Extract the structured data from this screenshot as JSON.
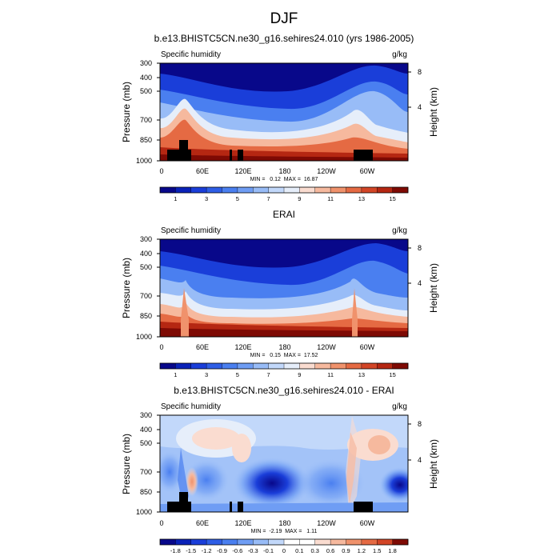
{
  "page_title": "DJF",
  "chart_data": [
    {
      "type": "heatmap",
      "title": "b.e13.BHISTC5CN.ne30_g16.sehires24.010 (yrs 1986-2005)",
      "variable_label": "Specific humidity",
      "units_label": "g/kg",
      "ylabel": "Pressure (mb)",
      "ylabel_right": "Height (km)",
      "y_ticks": [
        "300",
        "400",
        "500",
        "700",
        "850",
        "1000"
      ],
      "y_ticks_right": [
        "8",
        "4"
      ],
      "x_ticks": [
        "0",
        "60E",
        "120E",
        "180",
        "120W",
        "60W"
      ],
      "stats": "MIN =   0.12  MAX =  16.87",
      "colorbar_labels": [
        "1",
        "3",
        "5",
        "7",
        "9",
        "11",
        "13",
        "15"
      ],
      "colorbar_colors": [
        "#08088a",
        "#0a22b8",
        "#1a3ed9",
        "#2e5ee6",
        "#4a7ff0",
        "#6f9df4",
        "#98bcf7",
        "#c2d8fa",
        "#e6eefa",
        "#fadcd0",
        "#f6b99e",
        "#f0926c",
        "#e56a43",
        "#d24526",
        "#b52712",
        "#7e0a04"
      ],
      "mask": true
    },
    {
      "type": "heatmap",
      "title": "ERAI",
      "variable_label": "Specific humidity",
      "units_label": "g/kg",
      "ylabel": "Pressure (mb)",
      "ylabel_right": "Height (km)",
      "y_ticks": [
        "300",
        "400",
        "500",
        "700",
        "850",
        "1000"
      ],
      "y_ticks_right": [
        "8",
        "4"
      ],
      "x_ticks": [
        "0",
        "60E",
        "120E",
        "180",
        "120W",
        "60W"
      ],
      "stats": "MIN =   0.15  MAX =  17.52",
      "colorbar_labels": [
        "1",
        "3",
        "5",
        "7",
        "9",
        "11",
        "13",
        "15"
      ],
      "colorbar_colors": [
        "#08088a",
        "#0a22b8",
        "#1a3ed9",
        "#2e5ee6",
        "#4a7ff0",
        "#6f9df4",
        "#98bcf7",
        "#c2d8fa",
        "#e6eefa",
        "#fadcd0",
        "#f6b99e",
        "#f0926c",
        "#e56a43",
        "#d24526",
        "#b52712",
        "#7e0a04"
      ],
      "mask": false
    },
    {
      "type": "heatmap",
      "title": "b.e13.BHISTC5CN.ne30_g16.sehires24.010 - ERAI",
      "variable_label": "Specific humidity",
      "units_label": "g/kg",
      "ylabel": "Pressure (mb)",
      "ylabel_right": "Height (km)",
      "y_ticks": [
        "300",
        "400",
        "500",
        "700",
        "850",
        "1000"
      ],
      "y_ticks_right": [
        "8",
        "4"
      ],
      "x_ticks": [
        "0",
        "60E",
        "120E",
        "180",
        "120W",
        "60W"
      ],
      "stats": "MIN =  -2.19  MAX =   1.11",
      "colorbar_labels": [
        "-1.8",
        "-1.5",
        "-1.2",
        "-0.9",
        "-0.6",
        "-0.3",
        "-0.1",
        "0",
        "0.1",
        "0.3",
        "0.6",
        "0.9",
        "1.2",
        "1.5",
        "1.8"
      ],
      "colorbar_colors": [
        "#08088a",
        "#0a22b8",
        "#1a3ed9",
        "#2e5ee6",
        "#4a7ff0",
        "#6f9df4",
        "#98bcf7",
        "#c2d8fa",
        "#ffffff",
        "#ffffff",
        "#fadcd0",
        "#f6b99e",
        "#f0926c",
        "#e56a43",
        "#d24526",
        "#7e0a04"
      ],
      "mask": true
    }
  ]
}
